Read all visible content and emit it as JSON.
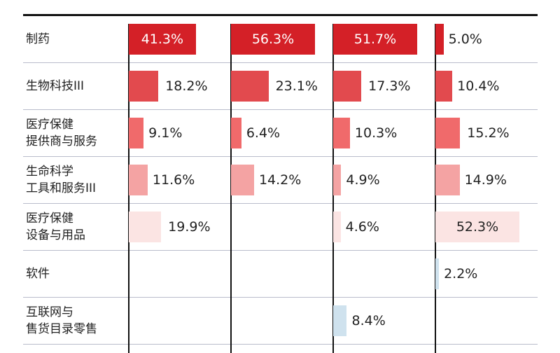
{
  "chart_data": {
    "type": "bar",
    "title": "",
    "unit": "%",
    "columns": 4,
    "categories": [
      "制药",
      "生物科技III",
      "医疗保健\n提供商与服务",
      "生命科学\n工具和服务III",
      "医疗保健\n设备与用品",
      "软件",
      "互联网与\n售货目录零售"
    ],
    "series": [
      {
        "values": [
          41.3,
          18.2,
          9.1,
          11.6,
          19.9,
          null,
          null
        ]
      },
      {
        "values": [
          56.3,
          23.1,
          6.4,
          14.2,
          null,
          null,
          null
        ]
      },
      {
        "values": [
          51.7,
          17.3,
          10.3,
          4.9,
          4.6,
          null,
          8.4
        ]
      },
      {
        "values": [
          5.0,
          10.4,
          15.2,
          14.9,
          52.3,
          2.2,
          null
        ]
      }
    ],
    "labels": [
      [
        "41.3%",
        "18.2%",
        "9.1%",
        "11.6%",
        "19.9%",
        "",
        ""
      ],
      [
        "56.3%",
        "23.1%",
        "6.4%",
        "14.2%",
        "",
        "",
        ""
      ],
      [
        "51.7%",
        "17.3%",
        "10.3%",
        "4.9%",
        "4.6%",
        "",
        "8.4%"
      ],
      [
        "5.0%",
        "10.4%",
        "15.2%",
        "14.9%",
        "52.3%",
        "2.2%",
        ""
      ]
    ],
    "row_colors": [
      "#d42027",
      "#e24a4e",
      "#f06a6b",
      "#f4a3a3",
      "#fbe4e3",
      "#cfe2ee",
      "#cfe2ee"
    ]
  }
}
